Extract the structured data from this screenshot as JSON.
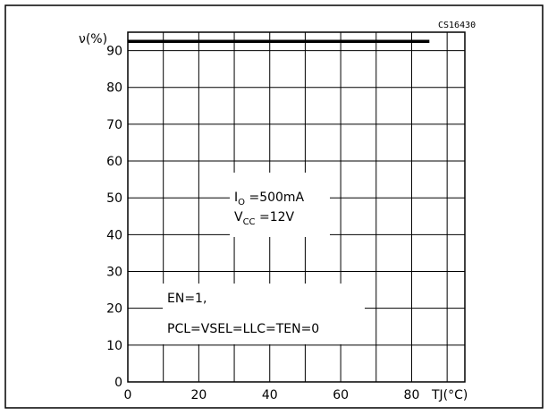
{
  "chart_data": {
    "type": "line",
    "figure_ref": "CS16430",
    "ylabel": "ν(%)",
    "xlabel": "TJ(°C)",
    "xlim": [
      0,
      95
    ],
    "ylim": [
      0,
      95
    ],
    "x_ticks": [
      0,
      20,
      40,
      60,
      80
    ],
    "y_ticks": [
      0,
      10,
      20,
      30,
      40,
      50,
      60,
      70,
      80,
      90
    ],
    "grid": true,
    "series": [
      {
        "x": [
          0,
          85
        ],
        "y": [
          92.5,
          92.5
        ]
      }
    ],
    "annotations": {
      "io": "I",
      "io_sub": "O",
      "io_val": " =500mA",
      "vcc": "V",
      "vcc_sub": "CC",
      "vcc_val": " =12V",
      "en": "EN=1,",
      "pcl": "PCL=VSEL=LLC=TEN=0"
    }
  }
}
